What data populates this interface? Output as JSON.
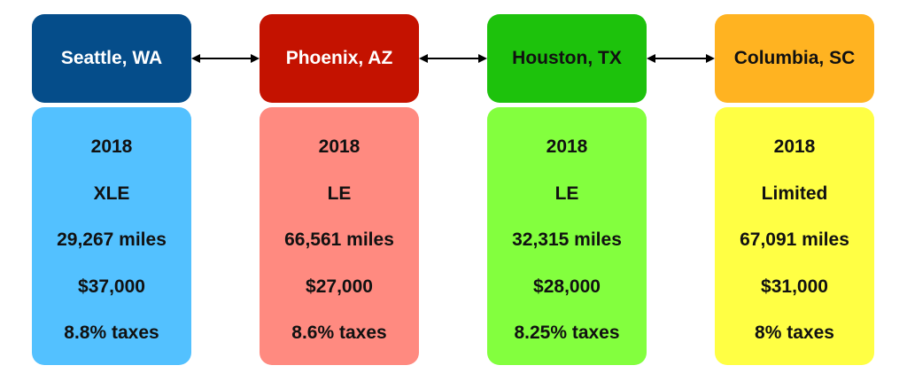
{
  "locations": [
    {
      "city": "Seattle, WA",
      "header_color": "#054D8A",
      "header_text_color": "#ffffff",
      "card_color": "#53C1FF",
      "year": "2018",
      "trim": "XLE",
      "mileage": "29,267 miles",
      "price": "$37,000",
      "taxes": "8.8% taxes"
    },
    {
      "city": "Phoenix, AZ",
      "header_color": "#C41200",
      "header_text_color": "#ffffff",
      "card_color": "#FF8A80",
      "year": "2018",
      "trim": "LE",
      "mileage": "66,561 miles",
      "price": "$27,000",
      "taxes": "8.6% taxes"
    },
    {
      "city": "Houston, TX",
      "header_color": "#1DC20C",
      "header_text_color": "#111111",
      "card_color": "#83FF3E",
      "year": "2018",
      "trim": "LE",
      "mileage": "32,315 miles",
      "price": "$28,000",
      "taxes": "8.25% taxes"
    },
    {
      "city": "Columbia, SC",
      "header_color": "#FFB321",
      "header_text_color": "#111111",
      "card_color": "#FFFF44",
      "year": "2018",
      "trim": "Limited",
      "mileage": "67,091 miles",
      "price": "$31,000",
      "taxes": "8% taxes"
    }
  ],
  "connectors": [
    {
      "icon": "double-arrow-icon"
    },
    {
      "icon": "double-arrow-icon"
    },
    {
      "icon": "double-arrow-icon"
    }
  ]
}
